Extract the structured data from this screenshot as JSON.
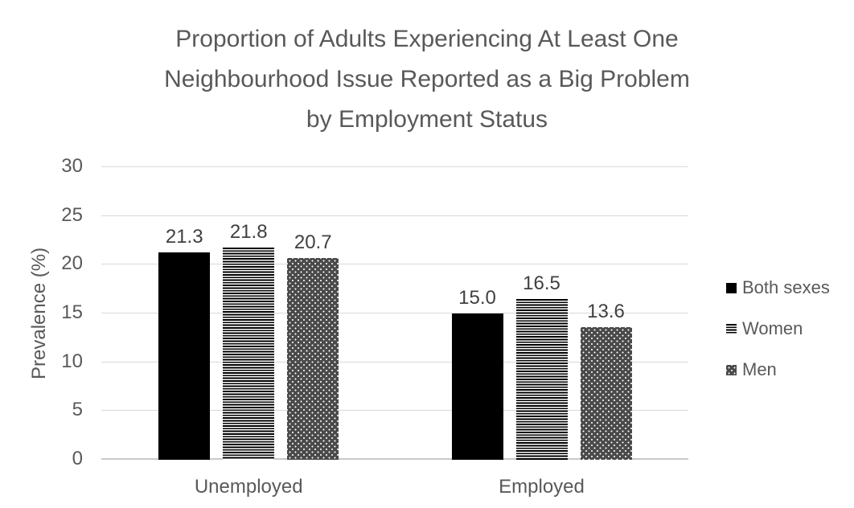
{
  "chart_data": {
    "type": "bar",
    "title_lines": [
      "Proportion of Adults Experiencing At Least One",
      "Neighbourhood Issue Reported as a Big Problem",
      "by Employment Status"
    ],
    "title": "Proportion of Adults Experiencing At Least One Neighbourhood Issue Reported as a Big Problem by Employment Status",
    "categories": [
      "Unemployed",
      "Employed"
    ],
    "series": [
      {
        "name": "Both sexes",
        "pattern": "solid",
        "values": [
          21.3,
          15.0
        ],
        "labels": [
          "21.3",
          "15.0"
        ]
      },
      {
        "name": "Women",
        "pattern": "horizontal-stripes",
        "values": [
          21.8,
          16.5
        ],
        "labels": [
          "21.8",
          "16.5"
        ]
      },
      {
        "name": "Men",
        "pattern": "dots",
        "values": [
          20.7,
          13.6
        ],
        "labels": [
          "20.7",
          "13.6"
        ]
      }
    ],
    "xlabel": "",
    "ylabel": "Prevalence (%)",
    "ylim": [
      0,
      30
    ],
    "yticks": [
      0,
      5,
      10,
      15,
      20,
      25,
      30
    ],
    "grid": true,
    "legend_position": "right"
  },
  "colors": {
    "background": "#ffffff",
    "title_text": "#595959",
    "axis_text": "#595959",
    "data_label_text": "#404040",
    "gridline": "#d9d9d9",
    "axis_line": "#c9c9c9",
    "bar_black": "#000000",
    "bar_men_gray": "#4a4a4a"
  }
}
